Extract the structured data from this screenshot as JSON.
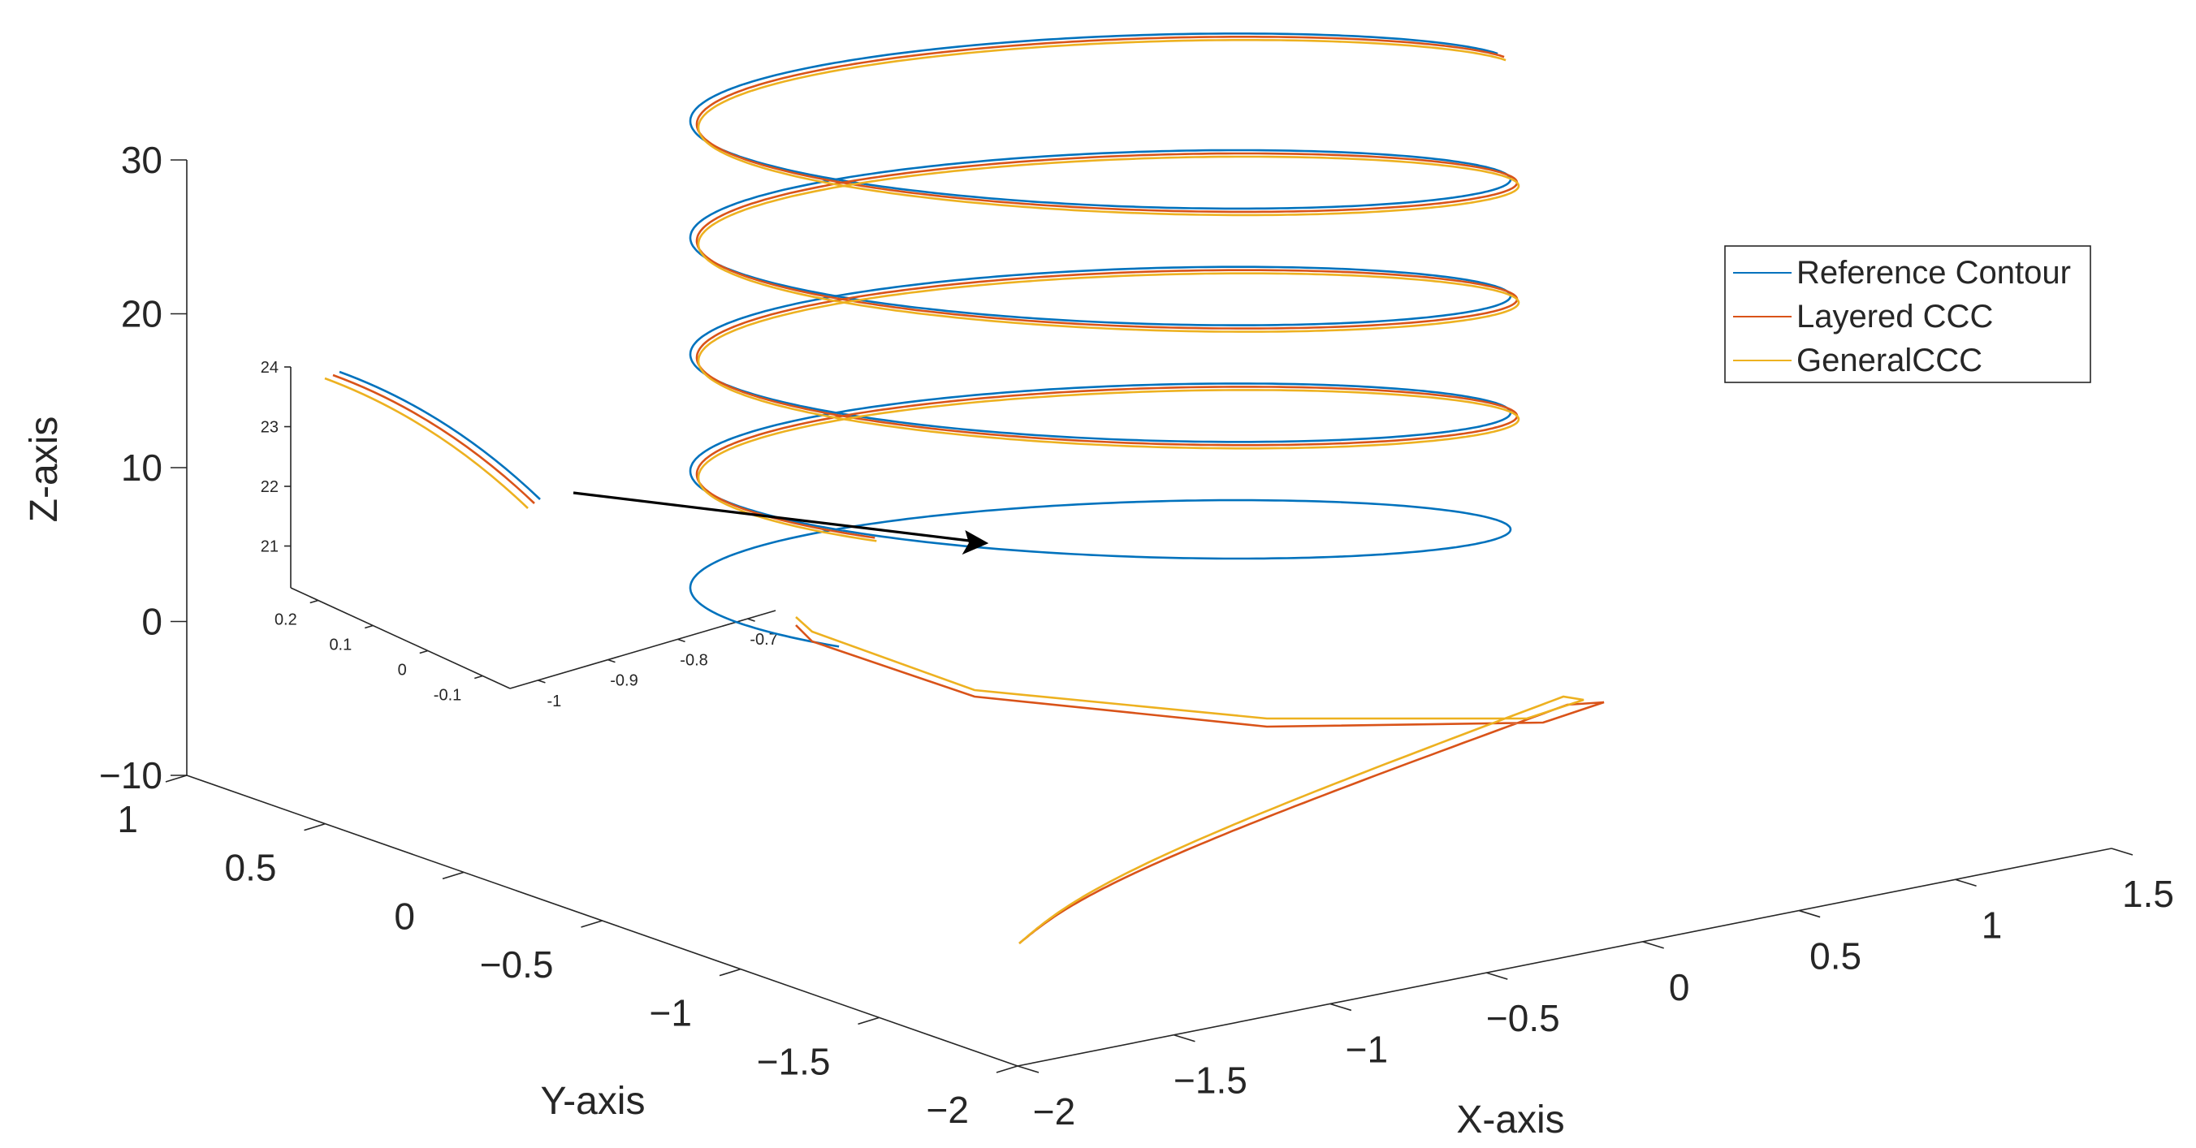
{
  "chart_data": [
    {
      "type": "line",
      "dimension": "3d",
      "xlabel": "X-axis",
      "ylabel": "Y-axis",
      "zlabel": "Z-axis",
      "xlim": [
        -2,
        1.5
      ],
      "ylim": [
        -2,
        1
      ],
      "zlim": [
        -10,
        30
      ],
      "x_ticks": [
        "−2",
        "−1.5",
        "−1",
        "−0.5",
        "0",
        "0.5",
        "1",
        "1.5"
      ],
      "y_ticks": [
        "−2",
        "−1.5",
        "−1",
        "−0.5",
        "0",
        "0.5",
        "1"
      ],
      "z_ticks": [
        "−10",
        "0",
        "10",
        "20",
        "30"
      ],
      "grid": false,
      "legend": {
        "position": "top-right",
        "entries": [
          "Reference Contour",
          "Layered CCC",
          "GeneralCCC"
        ]
      },
      "series": [
        {
          "name": "Reference Contour",
          "color": "#0072BD",
          "description_values": {
            "z_start": 0,
            "z_end": 40,
            "turns": 4.5
          }
        },
        {
          "name": "Layered CCC",
          "color": "#D95319",
          "description_values": {
            "z_start": -10,
            "z_end": 40
          }
        },
        {
          "name": "GeneralCCC",
          "color": "#EDB120",
          "description_values": {
            "z_start": -10,
            "z_end": 40
          }
        }
      ]
    },
    {
      "type": "line",
      "dimension": "3d",
      "inset": true,
      "x_ticks": [
        "-1",
        "-0.9",
        "-0.8",
        "-0.7"
      ],
      "y_ticks": [
        "-0.1",
        "0",
        "0.1",
        "0.2"
      ],
      "z_ticks": [
        "21",
        "22",
        "23",
        "24"
      ],
      "xlim": [
        -1,
        -0.7
      ],
      "ylim": [
        -0.1,
        0.2
      ],
      "zlim": [
        21,
        24
      ]
    }
  ]
}
